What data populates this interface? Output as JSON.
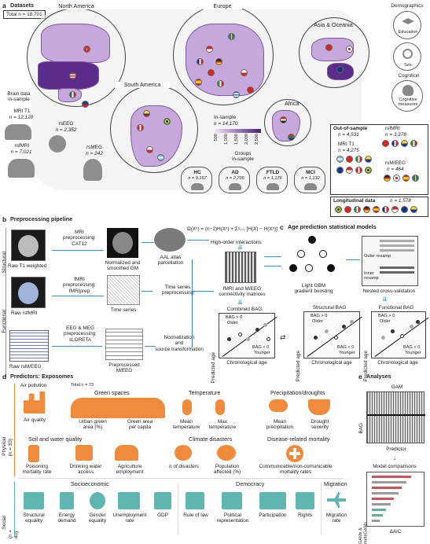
{
  "panel_a": {
    "letter": "a",
    "title": "Datasets",
    "total": "Total n = 18,701",
    "regions": {
      "north_america": "North America",
      "europe": "Europe",
      "asia": "Asia & Oceania",
      "south_america": "South America",
      "africa": "Africa"
    },
    "brain_data": "Brain data\nin-sample",
    "mri_t1": "MRI T1",
    "mri_t1_n": "n = 12,120",
    "rseeg": "rsEEG",
    "rseeg_n": "n = 2,352",
    "rsfmri": "rsfMRI",
    "rsfmri_n": "n = 7,021",
    "rsmeg": "rsMEG",
    "rsmeg_n": "n = 242",
    "in_sample": "In-sample",
    "in_sample_n": "n = 14,170",
    "legend_ticks": [
      "500",
      "1,000",
      "1,500",
      "2,000",
      "2,500"
    ],
    "groups_title": "Groups\nin-sample",
    "groups": [
      {
        "label": "HC",
        "n": "n = 9,157"
      },
      {
        "label": "AD",
        "n": "n = 2,705"
      },
      {
        "label": "FTLD",
        "n": "n = 1,176"
      },
      {
        "label": "MCI",
        "n": "n = 1,132"
      }
    ],
    "demographics": "Demographics",
    "education": "Education",
    "sex": "Sex",
    "cognition": "Cognition",
    "cognitive": "Cognitive\nmeasures",
    "out_of_sample": "Out-of-sample",
    "out_of_sample_n": "n = 4,531",
    "oos_rsfmri": "rsfMRI",
    "oos_rsfmri_n": "n = 3,378",
    "oos_mri": "MRI T1",
    "oos_mri_n": "n = 4,275",
    "oos_rsmeeg": "rsM/EEG",
    "oos_rsmeeg_n": "n = 464",
    "longitudinal": "Longitudinal data",
    "longitudinal_n": "n = 1,578"
  },
  "panel_b": {
    "letter": "b",
    "title": "Preprocessing pipeline",
    "structural": "Structural",
    "functional": "Functional",
    "raw_t1": "Raw T1 weighted",
    "mri_pre": "MRI\npreprocessing:\nCAT12",
    "norm_gm": "Normalized and\nsmoothed GM",
    "aal": "AAL atlas\nparcellation",
    "raw_rsfmri": "Raw rsfMRI",
    "fmri_pre": "fMRI\npreprocessing:\nfMRIprep",
    "time_series": "Time series",
    "ts_pre": "Time series\npreprocessing",
    "raw_rsmeeg": "Raw rsM/EEG",
    "eeg_pre": "EEG & MEG\npreprocessing:\nsLORETA",
    "prep_meeg": "Preprocessed\nM/EEG",
    "norm_src": "Normalization\nand\nsource transformation",
    "formula": "Ω(Xⁿ) = (n−2)H(Xⁿ) + Σⁿⱼ₌₁ [H(X) − H(Xⁿ)]",
    "hoi": "High-order interactions",
    "fc": "fMRI and M/EEG\nconnectivity matrices",
    "combined": "Combined BAG",
    "bag_pos": "BAG > 0",
    "older": "Older",
    "bag_neg": "BAG < 0",
    "younger": "Younger",
    "predicted": "Predicted age",
    "chrono": "Chronological age"
  },
  "panel_c": {
    "letter": "c",
    "title": "Age prediction statistical models",
    "lgbm": "Light GBM\ngradient boosting",
    "ncv": "Nested cross-validation",
    "outer": "Outer resamp",
    "inner": "Inner\nresamp",
    "structural_bag": "Structural BAG",
    "functional_bag": "Functional BAG"
  },
  "panel_d": {
    "letter": "d",
    "title": "Predictors: Exposomes",
    "total": "Total n = 73",
    "physical": "Physical",
    "physical_n": "(n = 33)",
    "social": "Social",
    "social_n": "(n = 40)",
    "air_pollution": "Air pollution",
    "air_quality": "Air quality",
    "green_spaces": "Green spaces",
    "urban_green": "Urban green\narea (%)",
    "green_capita": "Green area\nper capita",
    "temperature": "Temperature",
    "mean_temp": "Mean\ntemperature",
    "max_temp": "Max\ntemperature",
    "precip": "Precipitation/droughts",
    "mean_precip": "Mean\nprecipitation",
    "drought": "Drought\nseverity",
    "soil": "Soil and water quality",
    "poisoning": "Poisoning\nmortality rate",
    "drinking": "Drinking water\naccess",
    "agri": "Agriculture\nemployment",
    "climate": "Climate disasters",
    "n_disasters": "n of disasters",
    "pop_affected": "Population\naffected (%)",
    "disease": "Disease-related mortality",
    "communicable": "Communicable/non-comunicable\nmortality rates",
    "socioeconomic": "Socioeconomic",
    "struct_eq": "Structural\nequality",
    "energy": "Energy\ndemand",
    "gender": "Gender\nequality",
    "unemployment": "Unemployment\nrate",
    "gdp": "GDP",
    "democracy": "Democracy",
    "rule_law": "Rule of law",
    "political": "Political\nrepresentation",
    "participation": "Participation",
    "rights": "Rights",
    "migration": "Migration",
    "migration_rate": "Migration\nrate"
  },
  "panel_e": {
    "letter": "e",
    "title": "Analyses",
    "gam": "GAM",
    "bag": "BAG",
    "predictor": "Predictor",
    "model_comp": "Model comparisons",
    "gams": "GAMs & metaGAMs",
    "daic": "ΔAIC"
  },
  "colors": {
    "land": "#c7a8dc",
    "accent_blue": "#3a8fd6",
    "exposome_orange": "#f08a3c",
    "social_teal": "#5fb6b0"
  }
}
